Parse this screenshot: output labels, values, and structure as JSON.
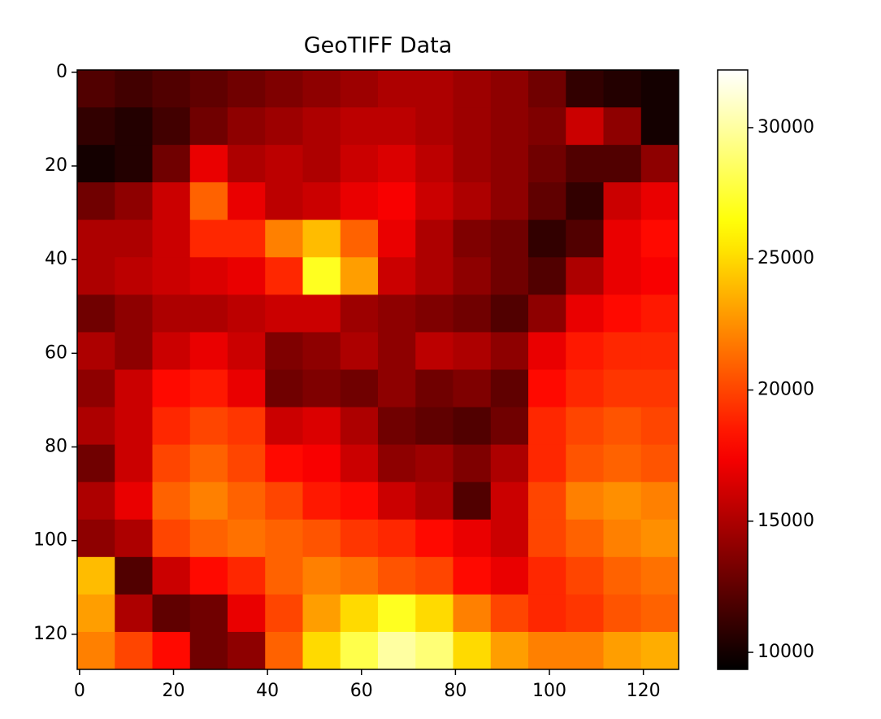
{
  "chart_data": {
    "type": "heatmap",
    "title": "GeoTIFF Data",
    "colormap": "hot",
    "xlim": [
      -0.5,
      127.5
    ],
    "ylim": [
      127.5,
      -0.5
    ],
    "xticks": [
      0,
      20,
      40,
      60,
      80,
      100,
      120
    ],
    "yticks": [
      0,
      20,
      40,
      60,
      80,
      100,
      120
    ],
    "clim": [
      9350,
      32200
    ],
    "cticks": [
      10000,
      15000,
      20000,
      25000,
      30000
    ],
    "values": [
      [
        12000,
        11500,
        12000,
        12500,
        13000,
        13500,
        14000,
        14500,
        15000,
        15000,
        14500,
        14000,
        13000,
        11000,
        10500,
        10000
      ],
      [
        11000,
        10500,
        11500,
        13000,
        14000,
        14500,
        15000,
        15500,
        15500,
        15000,
        14500,
        14000,
        13500,
        16000,
        14000,
        10000
      ],
      [
        10000,
        10500,
        13000,
        17000,
        15000,
        15500,
        15000,
        16000,
        16500,
        15500,
        14500,
        14000,
        13000,
        12000,
        12000,
        14000
      ],
      [
        13000,
        14000,
        16000,
        21000,
        17000,
        15500,
        16000,
        17000,
        17500,
        16000,
        15000,
        14000,
        12500,
        11000,
        16000,
        17000
      ],
      [
        15000,
        15000,
        16000,
        19000,
        19000,
        22000,
        24000,
        21000,
        17000,
        15000,
        13500,
        13000,
        11000,
        12000,
        17000,
        18000
      ],
      [
        15000,
        15500,
        16000,
        16500,
        17000,
        19000,
        27000,
        23000,
        16000,
        15000,
        14000,
        13000,
        12000,
        15000,
        17000,
        17500
      ],
      [
        13000,
        14000,
        15000,
        15000,
        15500,
        16000,
        16000,
        14500,
        14000,
        13500,
        13000,
        12000,
        14000,
        17000,
        18000,
        18500
      ],
      [
        15000,
        14000,
        16000,
        17000,
        16000,
        13500,
        14000,
        15000,
        14000,
        15500,
        15000,
        14000,
        17000,
        18500,
        19000,
        19000
      ],
      [
        14000,
        16000,
        18000,
        18500,
        17000,
        13000,
        13500,
        13000,
        14000,
        13000,
        13500,
        12500,
        18000,
        19000,
        19500,
        19500
      ],
      [
        15000,
        16000,
        19000,
        20000,
        19500,
        16000,
        16500,
        15000,
        13000,
        12500,
        12000,
        13000,
        19000,
        20000,
        20500,
        20000
      ],
      [
        13000,
        16000,
        20000,
        21000,
        20000,
        18000,
        17500,
        16000,
        14000,
        14500,
        13500,
        15000,
        19000,
        20500,
        21000,
        20500
      ],
      [
        15000,
        17000,
        21000,
        22000,
        21000,
        20000,
        18500,
        18000,
        16000,
        15000,
        12000,
        16000,
        20000,
        22000,
        22500,
        22000
      ],
      [
        14000,
        15000,
        20000,
        21000,
        21500,
        21000,
        20500,
        19500,
        19000,
        18000,
        17000,
        16000,
        20000,
        21000,
        22000,
        22500
      ],
      [
        24000,
        12000,
        16000,
        18000,
        19000,
        21000,
        22000,
        21500,
        20500,
        20000,
        18000,
        17000,
        19000,
        20000,
        21000,
        21500
      ],
      [
        23000,
        15000,
        12500,
        13000,
        17000,
        20000,
        23000,
        25000,
        27000,
        25000,
        22000,
        20000,
        19000,
        19500,
        20500,
        21000
      ],
      [
        22000,
        20000,
        18000,
        13000,
        14000,
        21000,
        25000,
        28000,
        30000,
        29000,
        25000,
        23000,
        22000,
        22000,
        23000,
        23500
      ]
    ]
  }
}
